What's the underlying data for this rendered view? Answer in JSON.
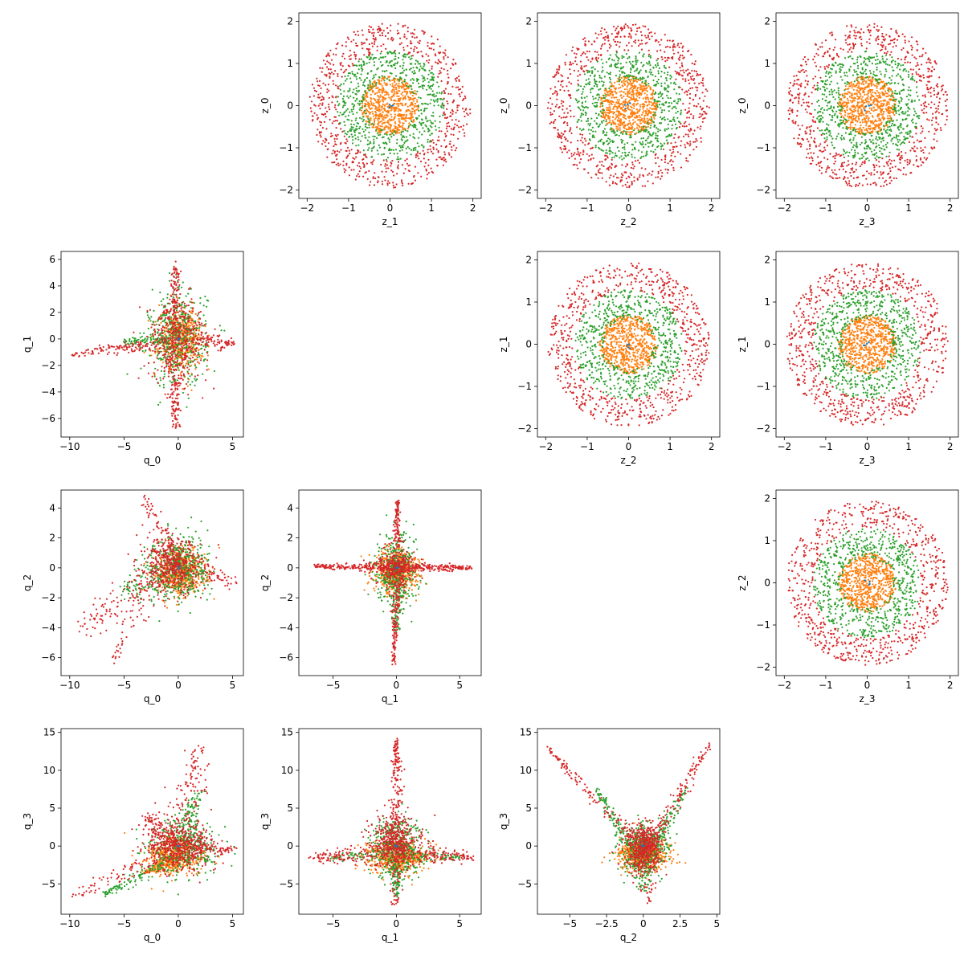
{
  "figure": {
    "colors": {
      "inner": "#ff7f0e",
      "middle": "#2ca02c",
      "outer": "#d62728",
      "center": "#1f77b4"
    }
  },
  "chart_data": [
    {
      "type": "scatter",
      "row": 0,
      "col": 1,
      "xlabel": "z_1",
      "ylabel": "z_0",
      "xlim": [
        -2.2,
        2.2
      ],
      "ylim": [
        -2.2,
        2.2
      ],
      "xticks": [
        -2,
        -1,
        0,
        1,
        2
      ],
      "yticks": [
        -2,
        -1,
        0,
        1,
        2
      ],
      "shape": "disk",
      "inner_r": 0.7,
      "middle_r": 1.3,
      "outer_r": 1.95
    },
    {
      "type": "scatter",
      "row": 0,
      "col": 2,
      "xlabel": "z_2",
      "ylabel": "z_0",
      "xlim": [
        -2.2,
        2.2
      ],
      "ylim": [
        -2.2,
        2.2
      ],
      "xticks": [
        -2,
        -1,
        0,
        1,
        2
      ],
      "yticks": [
        -2,
        -1,
        0,
        1,
        2
      ],
      "shape": "disk",
      "inner_r": 0.7,
      "middle_r": 1.3,
      "outer_r": 1.95
    },
    {
      "type": "scatter",
      "row": 0,
      "col": 3,
      "xlabel": "z_3",
      "ylabel": "z_0",
      "xlim": [
        -2.2,
        2.2
      ],
      "ylim": [
        -2.2,
        2.2
      ],
      "xticks": [
        -2,
        -1,
        0,
        1,
        2
      ],
      "yticks": [
        -2,
        -1,
        0,
        1,
        2
      ],
      "shape": "disk",
      "inner_r": 0.7,
      "middle_r": 1.3,
      "outer_r": 1.95
    },
    {
      "type": "scatter",
      "row": 1,
      "col": 0,
      "xlabel": "q_0",
      "ylabel": "q_1",
      "xlim": [
        -10.8,
        6.0
      ],
      "ylim": [
        -7.4,
        6.6
      ],
      "xticks": [
        -10,
        -5,
        0,
        5
      ],
      "yticks": [
        -6,
        -4,
        -2,
        0,
        2,
        4,
        6
      ],
      "shape": "q0q1"
    },
    {
      "type": "scatter",
      "row": 1,
      "col": 2,
      "xlabel": "z_2",
      "ylabel": "z_1",
      "xlim": [
        -2.2,
        2.2
      ],
      "ylim": [
        -2.2,
        2.2
      ],
      "xticks": [
        -2,
        -1,
        0,
        1,
        2
      ],
      "yticks": [
        -2,
        -1,
        0,
        1,
        2
      ],
      "shape": "disk",
      "inner_r": 0.7,
      "middle_r": 1.3,
      "outer_r": 1.95
    },
    {
      "type": "scatter",
      "row": 1,
      "col": 3,
      "xlabel": "z_3",
      "ylabel": "z_1",
      "xlim": [
        -2.2,
        2.2
      ],
      "ylim": [
        -2.2,
        2.2
      ],
      "xticks": [
        -2,
        -1,
        0,
        1,
        2
      ],
      "yticks": [
        -2,
        -1,
        0,
        1,
        2
      ],
      "shape": "disk",
      "inner_r": 0.7,
      "middle_r": 1.3,
      "outer_r": 1.95
    },
    {
      "type": "scatter",
      "row": 2,
      "col": 0,
      "xlabel": "q_0",
      "ylabel": "q_2",
      "xlim": [
        -10.8,
        6.0
      ],
      "ylim": [
        -7.2,
        5.2
      ],
      "xticks": [
        -10,
        -5,
        0,
        5
      ],
      "yticks": [
        -6,
        -4,
        -2,
        0,
        2,
        4
      ],
      "shape": "q0q2"
    },
    {
      "type": "scatter",
      "row": 2,
      "col": 1,
      "xlabel": "q_1",
      "ylabel": "q_2",
      "xlim": [
        -7.7,
        6.7
      ],
      "ylim": [
        -7.2,
        5.2
      ],
      "xticks": [
        -5,
        0,
        5
      ],
      "yticks": [
        -6,
        -4,
        -2,
        0,
        2,
        4
      ],
      "shape": "q1q2"
    },
    {
      "type": "scatter",
      "row": 2,
      "col": 3,
      "xlabel": "z_3",
      "ylabel": "z_2",
      "xlim": [
        -2.2,
        2.2
      ],
      "ylim": [
        -2.2,
        2.2
      ],
      "xticks": [
        -2,
        -1,
        0,
        1,
        2
      ],
      "yticks": [
        -2,
        -1,
        0,
        1,
        2
      ],
      "shape": "disk",
      "inner_r": 0.7,
      "middle_r": 1.3,
      "outer_r": 1.95
    },
    {
      "type": "scatter",
      "row": 3,
      "col": 0,
      "xlabel": "q_0",
      "ylabel": "q_3",
      "xlim": [
        -10.8,
        6.0
      ],
      "ylim": [
        -9.0,
        15.5
      ],
      "xticks": [
        -10,
        -5,
        0,
        5
      ],
      "yticks": [
        -5,
        0,
        5,
        10,
        15
      ],
      "shape": "q0q3"
    },
    {
      "type": "scatter",
      "row": 3,
      "col": 1,
      "xlabel": "q_1",
      "ylabel": "q_3",
      "xlim": [
        -7.7,
        6.7
      ],
      "ylim": [
        -9.0,
        15.5
      ],
      "xticks": [
        -5,
        0,
        5
      ],
      "yticks": [
        -5,
        0,
        5,
        10,
        15
      ],
      "shape": "q1q3"
    },
    {
      "type": "scatter",
      "row": 3,
      "col": 2,
      "xlabel": "q_2",
      "ylabel": "q_3",
      "xlim": [
        -7.2,
        5.2
      ],
      "ylim": [
        -9.0,
        15.5
      ],
      "xticks": [
        -5.0,
        -2.5,
        0.0,
        2.5,
        5.0
      ],
      "yticks": [
        -5,
        0,
        5,
        10,
        15
      ],
      "shape": "q2q3"
    }
  ]
}
